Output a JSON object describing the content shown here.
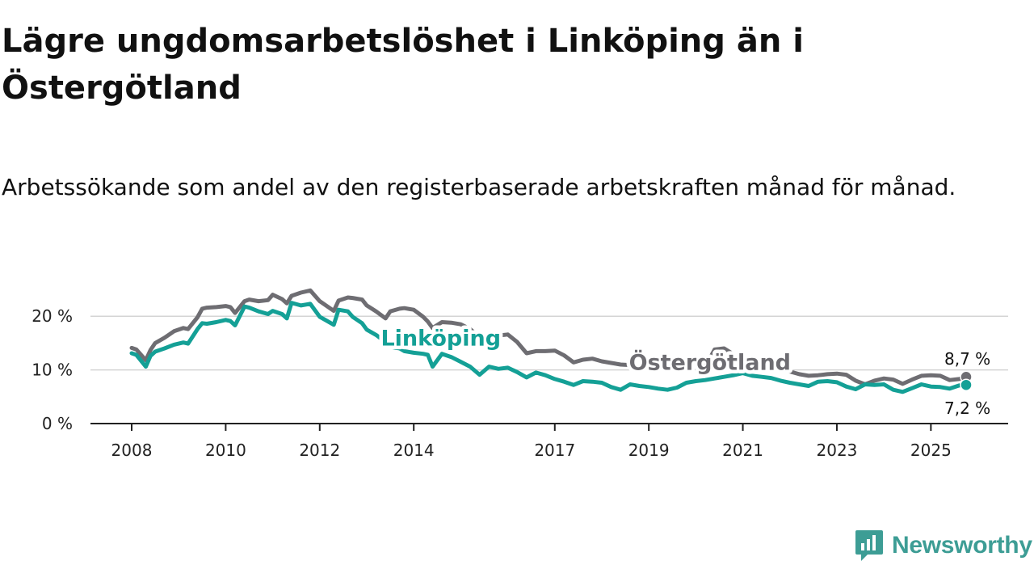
{
  "title": "Lägre ungdomsarbetslöshet i Linköping än i Östergötland",
  "subtitle": "Arbetssökande som andel av den registerbaserade arbetskraften månad för månad.",
  "brand": {
    "name": "Newsworthy",
    "color": "#3d9d95",
    "icon": "newsworthy-logo-icon"
  },
  "chart_data": {
    "type": "line",
    "title": "Lägre ungdomsarbetslöshet i Linköping än i Östergötland",
    "xlabel": "",
    "ylabel": "",
    "ylim": [
      0,
      25
    ],
    "yticks": [
      {
        "value": 0,
        "label": "0 %"
      },
      {
        "value": 10,
        "label": "10 %"
      },
      {
        "value": 20,
        "label": "20 %"
      }
    ],
    "xlim": [
      2008,
      2025.75
    ],
    "xticks": [
      {
        "value": 2008,
        "label": "2008"
      },
      {
        "value": 2010,
        "label": "2010"
      },
      {
        "value": 2012,
        "label": "2012"
      },
      {
        "value": 2014,
        "label": "2014"
      },
      {
        "value": 2017,
        "label": "2017"
      },
      {
        "value": 2019,
        "label": "2019"
      },
      {
        "value": 2021,
        "label": "2021"
      },
      {
        "value": 2023,
        "label": "2023"
      },
      {
        "value": 2025,
        "label": "2025"
      }
    ],
    "grid": true,
    "series": [
      {
        "name": "Östergötland",
        "color": "#6e6d72",
        "x": [
          2008.0,
          2008.1,
          2008.3,
          2008.4,
          2008.5,
          2008.7,
          2008.9,
          2009.1,
          2009.2,
          2009.4,
          2009.5,
          2009.6,
          2009.8,
          2010.0,
          2010.1,
          2010.2,
          2010.4,
          2010.5,
          2010.7,
          2010.9,
          2011.0,
          2011.2,
          2011.3,
          2011.4,
          2011.6,
          2011.8,
          2012.0,
          2012.1,
          2012.3,
          2012.4,
          2012.6,
          2012.7,
          2012.9,
          2013.0,
          2013.2,
          2013.4,
          2013.5,
          2013.7,
          2013.8,
          2014.0,
          2014.2,
          2014.3,
          2014.4,
          2014.6,
          2014.8,
          2015.0,
          2015.2,
          2015.4,
          2015.6,
          2015.8,
          2016.0,
          2016.2,
          2016.4,
          2016.6,
          2016.8,
          2017.0,
          2017.2,
          2017.4,
          2017.6,
          2017.8,
          2018.0,
          2018.2,
          2018.4,
          2018.6,
          2018.8,
          2019.0,
          2019.2,
          2019.4,
          2019.6,
          2019.8,
          2020.0,
          2020.2,
          2020.4,
          2020.6,
          2020.8,
          2021.0,
          2021.2,
          2021.4,
          2021.6,
          2021.8,
          2022.0,
          2022.2,
          2022.4,
          2022.6,
          2022.8,
          2023.0,
          2023.2,
          2023.4,
          2023.6,
          2023.8,
          2024.0,
          2024.2,
          2024.4,
          2024.6,
          2024.8,
          2025.0,
          2025.2,
          2025.4,
          2025.6,
          2025.75
        ],
        "values": [
          14.1,
          13.8,
          11.8,
          13.7,
          15.0,
          16.0,
          17.2,
          17.8,
          17.6,
          19.8,
          21.4,
          21.6,
          21.7,
          21.9,
          21.7,
          20.6,
          22.8,
          23.1,
          22.8,
          23.0,
          24.0,
          23.2,
          22.4,
          23.8,
          24.4,
          24.8,
          22.8,
          22.2,
          21.0,
          22.9,
          23.5,
          23.4,
          23.1,
          22.0,
          20.9,
          19.6,
          20.9,
          21.4,
          21.5,
          21.2,
          19.9,
          19.0,
          17.8,
          18.9,
          18.8,
          18.5,
          17.6,
          16.1,
          16.6,
          16.4,
          16.6,
          15.2,
          13.1,
          13.5,
          13.5,
          13.6,
          12.7,
          11.4,
          11.9,
          12.1,
          11.6,
          11.3,
          11.0,
          10.9,
          10.5,
          10.4,
          10.3,
          10.2,
          10.3,
          10.7,
          10.4,
          10.6,
          13.8,
          14.0,
          12.9,
          12.5,
          11.1,
          10.9,
          10.4,
          10.1,
          9.7,
          9.2,
          8.9,
          9.0,
          9.2,
          9.3,
          9.1,
          8.0,
          7.3,
          8.0,
          8.4,
          8.2,
          7.4,
          8.2,
          8.9,
          9.0,
          8.9,
          8.1,
          8.3,
          8.7
        ]
      },
      {
        "name": "Linköping",
        "color": "#14a096",
        "x": [
          2008.0,
          2008.1,
          2008.3,
          2008.4,
          2008.5,
          2008.7,
          2008.9,
          2009.1,
          2009.2,
          2009.4,
          2009.5,
          2009.6,
          2009.8,
          2010.0,
          2010.1,
          2010.2,
          2010.4,
          2010.5,
          2010.7,
          2010.9,
          2011.0,
          2011.2,
          2011.3,
          2011.4,
          2011.6,
          2011.8,
          2012.0,
          2012.1,
          2012.3,
          2012.4,
          2012.6,
          2012.7,
          2012.9,
          2013.0,
          2013.2,
          2013.4,
          2013.5,
          2013.7,
          2013.8,
          2014.0,
          2014.2,
          2014.3,
          2014.4,
          2014.6,
          2014.8,
          2015.0,
          2015.2,
          2015.4,
          2015.6,
          2015.8,
          2016.0,
          2016.2,
          2016.4,
          2016.6,
          2016.8,
          2017.0,
          2017.2,
          2017.4,
          2017.6,
          2017.8,
          2018.0,
          2018.2,
          2018.4,
          2018.6,
          2018.8,
          2019.0,
          2019.2,
          2019.4,
          2019.6,
          2019.8,
          2020.0,
          2020.2,
          2020.4,
          2020.6,
          2020.8,
          2021.0,
          2021.2,
          2021.4,
          2021.6,
          2021.8,
          2022.0,
          2022.2,
          2022.4,
          2022.6,
          2022.8,
          2023.0,
          2023.2,
          2023.4,
          2023.6,
          2023.8,
          2024.0,
          2024.2,
          2024.4,
          2024.6,
          2024.8,
          2025.0,
          2025.2,
          2025.4,
          2025.6,
          2025.75
        ],
        "values": [
          13.1,
          12.8,
          10.6,
          12.6,
          13.4,
          14.0,
          14.7,
          15.1,
          14.9,
          17.6,
          18.7,
          18.6,
          18.9,
          19.3,
          19.1,
          18.3,
          21.8,
          21.6,
          20.9,
          20.4,
          21.0,
          20.4,
          19.6,
          22.5,
          22.0,
          22.3,
          19.9,
          19.4,
          18.4,
          21.2,
          20.9,
          19.9,
          18.7,
          17.5,
          16.5,
          15.2,
          14.3,
          14.0,
          13.5,
          13.2,
          13.0,
          12.8,
          10.6,
          13.0,
          12.4,
          11.5,
          10.6,
          9.1,
          10.6,
          10.2,
          10.4,
          9.6,
          8.6,
          9.5,
          9.0,
          8.3,
          7.8,
          7.2,
          7.9,
          7.8,
          7.6,
          6.8,
          6.3,
          7.3,
          7.0,
          6.8,
          6.5,
          6.3,
          6.7,
          7.6,
          7.9,
          8.1,
          8.4,
          8.7,
          9.0,
          9.4,
          8.9,
          8.7,
          8.5,
          8.0,
          7.6,
          7.3,
          7.0,
          7.8,
          7.9,
          7.7,
          6.9,
          6.4,
          7.3,
          7.2,
          7.3,
          6.3,
          5.9,
          6.6,
          7.3,
          6.9,
          6.8,
          6.5,
          7.1,
          7.2
        ]
      }
    ],
    "labels": [
      {
        "text": "Linköping",
        "series": "Linköping"
      },
      {
        "text": "Östergötland",
        "series": "Östergötland"
      }
    ],
    "end_labels": [
      {
        "series": "Östergötland",
        "x": 2025.75,
        "value": 8.7,
        "text": "8,7 %"
      },
      {
        "series": "Linköping",
        "x": 2025.75,
        "value": 7.2,
        "text": "7,2 %"
      }
    ]
  }
}
